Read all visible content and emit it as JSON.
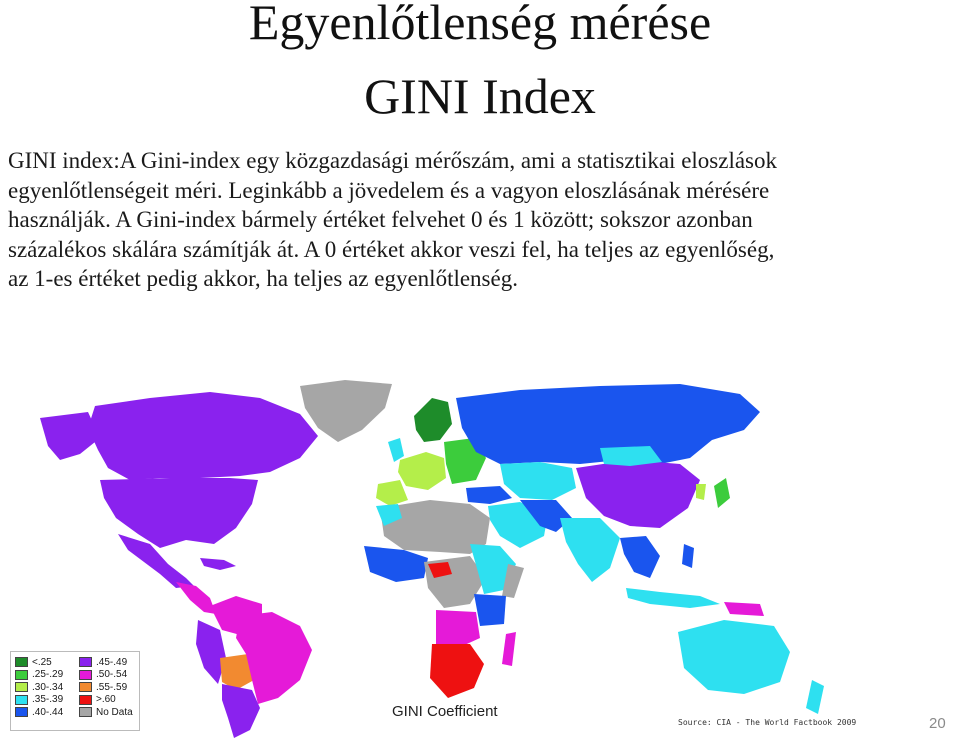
{
  "slide": {
    "title_line1": "Egyenlőtlenség mérése",
    "title_line2": "GINI Index",
    "body_lines": [
      "GINI index:A Gini-index egy közgazdasági mérőszám, ami a statisztikai eloszlások",
      "egyenlőtlenségeit méri. Leginkább a jövedelem és a vagyon eloszlásának mérésére",
      "használják. A Gini-index bármely értéket felvehet 0 és 1 között; sokszor azonban",
      "százalékos skálára számítják át. A 0 értéket akkor veszi fel, ha teljes az egyenlőség,",
      "az 1-es értéket pedig akkor, ha teljes az egyenlőtlenség."
    ],
    "slide_number": "20"
  },
  "map": {
    "caption": "GINI Coefficient",
    "source": "Source: CIA - The World Factbook 2009",
    "legend": [
      {
        "label": "<.25",
        "color": "#1e8c2a"
      },
      {
        "label": ".25-.29",
        "color": "#3ccc3c"
      },
      {
        "label": ".30-.34",
        "color": "#b4ee4a"
      },
      {
        "label": ".35-.39",
        "color": "#2ee0f0"
      },
      {
        "label": ".40-.44",
        "color": "#1a55ee"
      },
      {
        "label": ".45-.49",
        "color": "#8a22ee"
      },
      {
        "label": ".50-.54",
        "color": "#e51ad8"
      },
      {
        "label": ".55-.59",
        "color": "#f28a30"
      },
      {
        "label": ">.60",
        "color": "#ee1111"
      },
      {
        "label": "No Data",
        "color": "#a6a6a6"
      }
    ]
  }
}
